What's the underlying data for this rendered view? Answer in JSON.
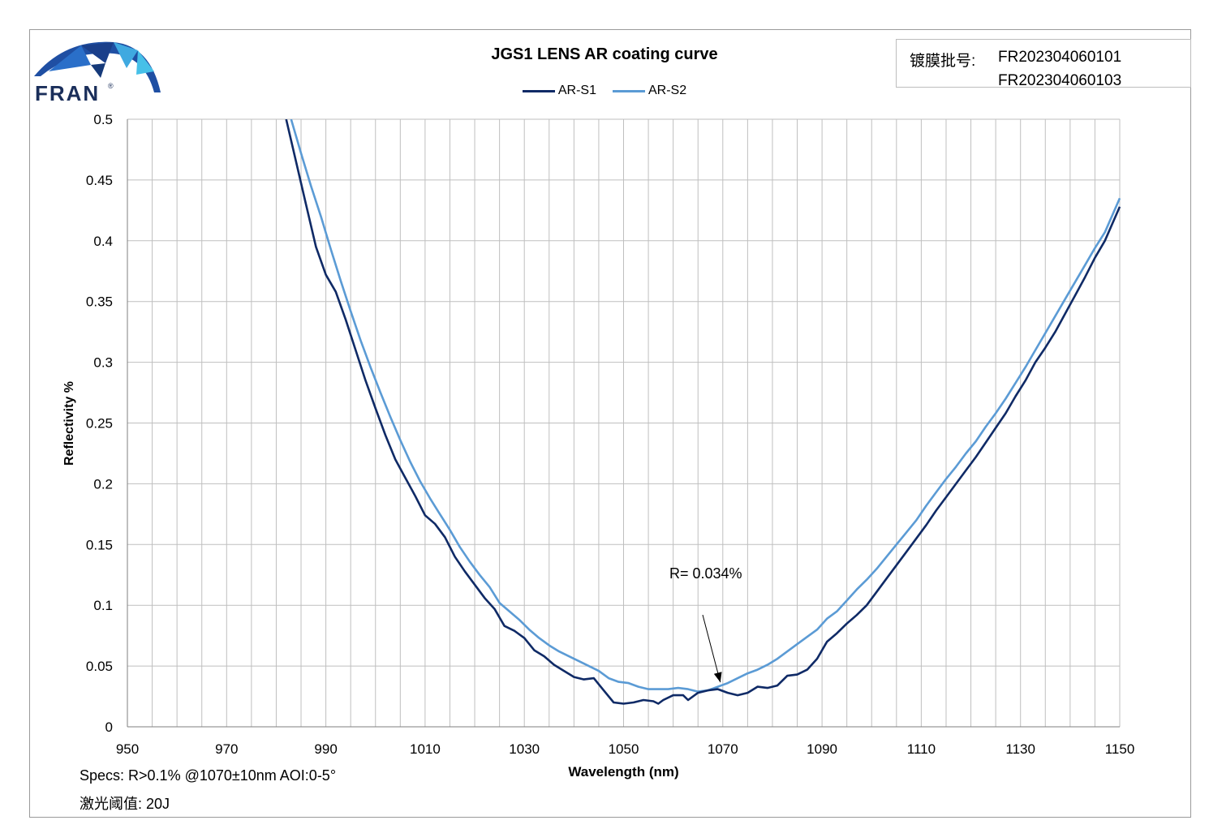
{
  "logo": {
    "brand": "FRAN",
    "reg_mark": "®"
  },
  "batch": {
    "label": "镀膜批号:",
    "numbers": [
      "FR202304060101",
      "FR202304060103"
    ]
  },
  "notes": {
    "specs": "Specs: R>0.1% @1070±10nm AOI:0-5°",
    "laser": "激光阈值: 20J"
  },
  "colors": {
    "s1": "#0f2a66",
    "s2": "#5b9bd5",
    "grid": "#bfbfbf",
    "frame": "#9a9a9a"
  },
  "chart_data": {
    "type": "line",
    "title": "JGS1 LENS AR coating curve",
    "xlabel": "Wavelength (nm)",
    "ylabel": "Reflectivity %",
    "xlim": [
      950,
      1150
    ],
    "ylim": [
      0,
      0.5
    ],
    "x_ticks": [
      950,
      970,
      990,
      1010,
      1030,
      1050,
      1070,
      1090,
      1110,
      1130,
      1150
    ],
    "y_ticks": [
      0,
      0.05,
      0.1,
      0.15,
      0.2,
      0.25,
      0.3,
      0.35,
      0.4,
      0.45,
      0.5
    ],
    "y_tick_labels": [
      "0",
      "0.05",
      "0.1",
      "0.15",
      "0.2",
      "0.25",
      "0.3",
      "0.35",
      "0.4",
      "0.45",
      "0.5"
    ],
    "grid": true,
    "legend_position": "top-center",
    "annotation": {
      "text": "R= 0.034%",
      "x": 1069.5,
      "y": 0.034
    },
    "series": [
      {
        "name": "AR-S1",
        "color": "#0f2a66",
        "x": [
          982,
          984,
          986,
          988,
          990,
          992,
          994,
          996,
          998,
          1000,
          1002,
          1004,
          1006,
          1008,
          1010,
          1012,
          1014,
          1016,
          1018,
          1020,
          1022,
          1024,
          1026,
          1028,
          1030,
          1032,
          1034,
          1036,
          1038,
          1040,
          1042,
          1044,
          1046,
          1048,
          1050,
          1052,
          1054,
          1056,
          1057,
          1058,
          1060,
          1062,
          1063,
          1065,
          1067,
          1069,
          1071,
          1073,
          1075,
          1077,
          1079,
          1081,
          1083,
          1085,
          1087,
          1089,
          1091,
          1093,
          1095,
          1097,
          1099,
          1101,
          1103,
          1105,
          1107,
          1109,
          1111,
          1113,
          1115,
          1117,
          1119,
          1121,
          1123,
          1125,
          1127,
          1129,
          1131,
          1133,
          1135,
          1137,
          1139,
          1141,
          1143,
          1145,
          1147,
          1150
        ],
        "y": [
          0.5,
          0.465,
          0.43,
          0.395,
          0.372,
          0.358,
          0.335,
          0.31,
          0.285,
          0.262,
          0.24,
          0.22,
          0.205,
          0.19,
          0.174,
          0.167,
          0.156,
          0.14,
          0.128,
          0.117,
          0.106,
          0.097,
          0.083,
          0.079,
          0.073,
          0.063,
          0.058,
          0.051,
          0.046,
          0.041,
          0.039,
          0.04,
          0.03,
          0.02,
          0.019,
          0.02,
          0.022,
          0.021,
          0.019,
          0.022,
          0.026,
          0.026,
          0.022,
          0.028,
          0.03,
          0.031,
          0.028,
          0.026,
          0.028,
          0.033,
          0.032,
          0.034,
          0.042,
          0.043,
          0.047,
          0.056,
          0.07,
          0.077,
          0.085,
          0.092,
          0.1,
          0.111,
          0.122,
          0.133,
          0.144,
          0.155,
          0.166,
          0.178,
          0.189,
          0.2,
          0.211,
          0.222,
          0.234,
          0.246,
          0.258,
          0.272,
          0.285,
          0.3,
          0.312,
          0.325,
          0.34,
          0.355,
          0.37,
          0.386,
          0.4,
          0.428
        ]
      },
      {
        "name": "AR-S2",
        "color": "#5b9bd5",
        "x": [
          983,
          985,
          987,
          989,
          991,
          993,
          995,
          997,
          999,
          1001,
          1003,
          1005,
          1007,
          1009,
          1011,
          1013,
          1015,
          1017,
          1019,
          1021,
          1023,
          1025,
          1027,
          1029,
          1031,
          1033,
          1035,
          1037,
          1039,
          1041,
          1043,
          1045,
          1047,
          1049,
          1051,
          1053,
          1055,
          1057,
          1059,
          1061,
          1063,
          1065,
          1067,
          1069,
          1071,
          1073,
          1075,
          1077,
          1079,
          1081,
          1083,
          1085,
          1087,
          1089,
          1091,
          1093,
          1095,
          1097,
          1099,
          1101,
          1103,
          1105,
          1107,
          1109,
          1111,
          1113,
          1115,
          1117,
          1119,
          1121,
          1123,
          1125,
          1127,
          1129,
          1131,
          1133,
          1135,
          1137,
          1139,
          1141,
          1143,
          1145,
          1147,
          1150
        ],
        "y": [
          0.5,
          0.472,
          0.445,
          0.42,
          0.393,
          0.367,
          0.342,
          0.318,
          0.296,
          0.275,
          0.255,
          0.236,
          0.218,
          0.202,
          0.188,
          0.175,
          0.162,
          0.148,
          0.136,
          0.125,
          0.115,
          0.102,
          0.095,
          0.088,
          0.08,
          0.073,
          0.067,
          0.062,
          0.058,
          0.054,
          0.05,
          0.046,
          0.04,
          0.037,
          0.036,
          0.033,
          0.031,
          0.031,
          0.031,
          0.032,
          0.031,
          0.029,
          0.03,
          0.033,
          0.036,
          0.04,
          0.044,
          0.047,
          0.051,
          0.056,
          0.062,
          0.068,
          0.074,
          0.08,
          0.089,
          0.095,
          0.104,
          0.113,
          0.121,
          0.13,
          0.14,
          0.15,
          0.16,
          0.17,
          0.182,
          0.193,
          0.204,
          0.214,
          0.225,
          0.235,
          0.247,
          0.258,
          0.27,
          0.283,
          0.296,
          0.31,
          0.324,
          0.338,
          0.352,
          0.366,
          0.38,
          0.394,
          0.407,
          0.435
        ]
      }
    ]
  }
}
